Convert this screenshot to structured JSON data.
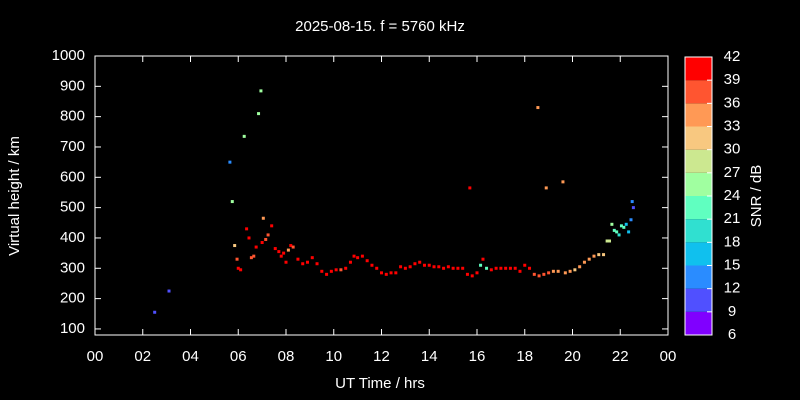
{
  "chart_data": {
    "type": "scatter",
    "title": "2025-08-15. f = 5760 kHz",
    "xlabel": "UT Time / hrs",
    "ylabel": "Virtual height / km",
    "xlim": [
      0,
      24
    ],
    "xticks": [
      {
        "value": 0,
        "label": "00"
      },
      {
        "value": 2,
        "label": "02"
      },
      {
        "value": 4,
        "label": "04"
      },
      {
        "value": 6,
        "label": "06"
      },
      {
        "value": 8,
        "label": "08"
      },
      10,
      12,
      14,
      16,
      18,
      20,
      22,
      {
        "value": 24,
        "label": "00"
      }
    ],
    "ylim": [
      80,
      1000
    ],
    "yticks": [
      100,
      200,
      300,
      400,
      500,
      600,
      700,
      800,
      900,
      1000
    ],
    "x": [
      2.5,
      3.1,
      5.65,
      5.75,
      5.85,
      5.95,
      6.0,
      6.1,
      6.25,
      6.35,
      6.45,
      6.55,
      6.65,
      6.75,
      6.85,
      6.95,
      7.0,
      7.05,
      7.15,
      7.25,
      7.4,
      7.55,
      7.7,
      7.8,
      7.9,
      8.0,
      8.1,
      8.2,
      8.3,
      8.5,
      8.7,
      8.9,
      9.1,
      9.3,
      9.5,
      9.7,
      9.9,
      10.1,
      10.3,
      10.5,
      10.7,
      10.85,
      11.0,
      11.2,
      11.4,
      11.6,
      11.8,
      12.0,
      12.2,
      12.4,
      12.6,
      12.8,
      13.0,
      13.2,
      13.4,
      13.6,
      13.8,
      14.0,
      14.2,
      14.4,
      14.6,
      14.8,
      15.0,
      15.2,
      15.4,
      15.6,
      15.7,
      15.8,
      16.0,
      16.15,
      16.25,
      16.4,
      16.6,
      16.8,
      17.0,
      17.2,
      17.4,
      17.6,
      17.8,
      18.0,
      18.2,
      18.4,
      18.55,
      18.6,
      18.8,
      18.9,
      19.0,
      19.2,
      19.4,
      19.6,
      19.7,
      19.9,
      20.1,
      20.3,
      20.5,
      20.7,
      20.9,
      21.1,
      21.3,
      21.45,
      21.55,
      21.65,
      21.75,
      21.85,
      21.95,
      22.05,
      22.15,
      22.25,
      22.35,
      22.45,
      22.5,
      22.55
    ],
    "values": [
      155,
      225,
      650,
      520,
      375,
      330,
      300,
      295,
      735,
      430,
      400,
      335,
      340,
      370,
      810,
      885,
      385,
      465,
      395,
      410,
      440,
      365,
      355,
      340,
      350,
      320,
      360,
      375,
      370,
      330,
      315,
      320,
      335,
      315,
      290,
      280,
      290,
      295,
      295,
      300,
      320,
      340,
      335,
      340,
      325,
      310,
      300,
      285,
      280,
      285,
      285,
      305,
      300,
      305,
      315,
      320,
      310,
      310,
      305,
      305,
      300,
      305,
      300,
      300,
      300,
      280,
      565,
      275,
      285,
      310,
      330,
      300,
      295,
      300,
      300,
      300,
      300,
      300,
      290,
      310,
      300,
      280,
      830,
      275,
      280,
      565,
      285,
      290,
      290,
      585,
      285,
      290,
      295,
      305,
      320,
      330,
      340,
      345,
      345,
      390,
      390,
      445,
      425,
      420,
      410,
      440,
      435,
      445,
      420,
      460,
      520,
      500
    ],
    "snr": [
      11,
      10,
      12,
      24,
      31,
      37,
      41,
      41,
      24,
      41,
      41,
      36,
      36,
      40,
      25,
      26,
      40,
      35,
      38,
      38,
      40,
      41,
      41,
      41,
      40,
      41,
      35,
      41,
      37,
      41,
      41,
      41,
      41,
      41,
      41,
      40,
      41,
      40,
      38,
      39,
      41,
      41,
      41,
      41,
      41,
      41,
      41,
      41,
      41,
      40,
      41,
      41,
      41,
      41,
      40,
      41,
      41,
      41,
      41,
      41,
      41,
      41,
      41,
      41,
      40,
      41,
      41,
      41,
      41,
      23,
      39,
      22,
      41,
      41,
      41,
      41,
      40,
      41,
      41,
      41,
      40,
      38,
      35,
      38,
      36,
      33,
      36,
      34,
      35,
      34,
      34,
      33,
      32,
      35,
      33,
      33,
      33,
      31,
      30,
      27,
      27,
      25,
      23,
      23,
      20,
      21,
      22,
      16,
      15,
      13,
      12,
      11
    ],
    "colorbar": {
      "label": "SNR / dB",
      "lim": [
        6,
        42
      ],
      "ticks": [
        6,
        9,
        12,
        15,
        18,
        21,
        24,
        27,
        30,
        33,
        36,
        39,
        42
      ],
      "colors": [
        "#8000ff",
        "#5050ff",
        "#2a8cff",
        "#10c0ee",
        "#30e0d0",
        "#60ffc0",
        "#a0ffa0",
        "#cce890",
        "#f8c880",
        "#ff9955",
        "#ff5530",
        "#ff0000"
      ]
    }
  }
}
